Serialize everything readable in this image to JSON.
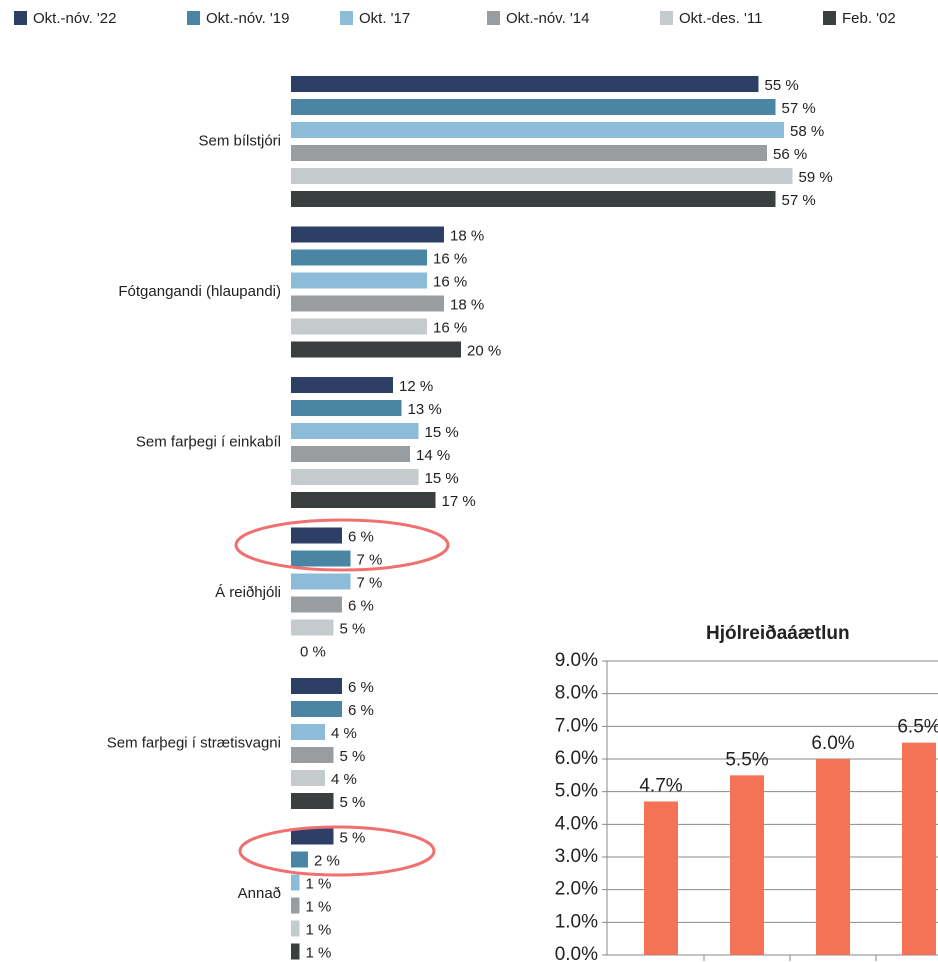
{
  "chart_data": [
    {
      "type": "barh",
      "categories": [
        "Sem bílstjóri",
        "Fótgangandi (hlaupandi)",
        "Sem farþegi í einkabíl",
        "Á reiðhjóli",
        "Sem farþegi í strætisvagni",
        "Annað"
      ],
      "series": [
        {
          "name": "Okt.-nóv. '22",
          "color": "#2e3f66",
          "values": [
            55,
            18,
            12,
            6,
            6,
            5
          ],
          "value_labels": [
            "55 %",
            "18 %",
            "12 %",
            "6 %",
            "6 %",
            "5 %"
          ]
        },
        {
          "name": "Okt.-nóv. '19",
          "color": "#4a85a3",
          "values": [
            57,
            16,
            13,
            7,
            6,
            2
          ],
          "value_labels": [
            "57 %",
            "16 %",
            "13 %",
            "7 %",
            "6 %",
            "2 %"
          ]
        },
        {
          "name": "Okt. '17",
          "color": "#8dbcd8",
          "values": [
            58,
            16,
            15,
            7,
            4,
            1
          ],
          "value_labels": [
            "58 %",
            "16 %",
            "15 %",
            "7 %",
            "4 %",
            "1 %"
          ]
        },
        {
          "name": "Okt.-nóv. '14",
          "color": "#9a9d9f",
          "values": [
            56,
            18,
            14,
            6,
            5,
            1
          ],
          "value_labels": [
            "56 %",
            "18 %",
            "14 %",
            "6 %",
            "5 %",
            "1 %"
          ]
        },
        {
          "name": "Okt.-des. '11",
          "color": "#c5cbcd",
          "values": [
            59,
            16,
            15,
            5,
            4,
            1
          ],
          "value_labels": [
            "59 %",
            "16 %",
            "15 %",
            "5 %",
            "4 %",
            "1 %"
          ]
        },
        {
          "name": "Feb. '02",
          "color": "#3b3f3f",
          "values": [
            57,
            20,
            17,
            0,
            5,
            1
          ],
          "value_labels": [
            "57 %",
            "20 %",
            "17 %",
            "0 %",
            "5 %",
            "1 %"
          ]
        }
      ]
    },
    {
      "type": "bar",
      "title": "Hjólreiðaáætlun",
      "categories": [
        null,
        null,
        null,
        null
      ],
      "values": [
        4.7,
        5.5,
        6.0,
        6.5
      ],
      "value_labels": [
        "4.7%",
        "5.5%",
        "6.0%",
        "6.5%"
      ],
      "color": "#f47356",
      "ylim": [
        0,
        9
      ],
      "grid": true,
      "yticks": [
        {
          "value": 0,
          "label": "0.0%"
        },
        {
          "value": 1,
          "label": "1.0%"
        },
        {
          "value": 2,
          "label": "2.0%"
        },
        {
          "value": 3,
          "label": "3.0%"
        },
        {
          "value": 4,
          "label": "4.0%"
        },
        {
          "value": 5,
          "label": "5.0%"
        },
        {
          "value": 6,
          "label": "6.0%"
        },
        {
          "value": 7,
          "label": "7.0%"
        },
        {
          "value": 8,
          "label": "8.0%"
        },
        {
          "value": 9,
          "label": "9.0%"
        }
      ]
    }
  ]
}
